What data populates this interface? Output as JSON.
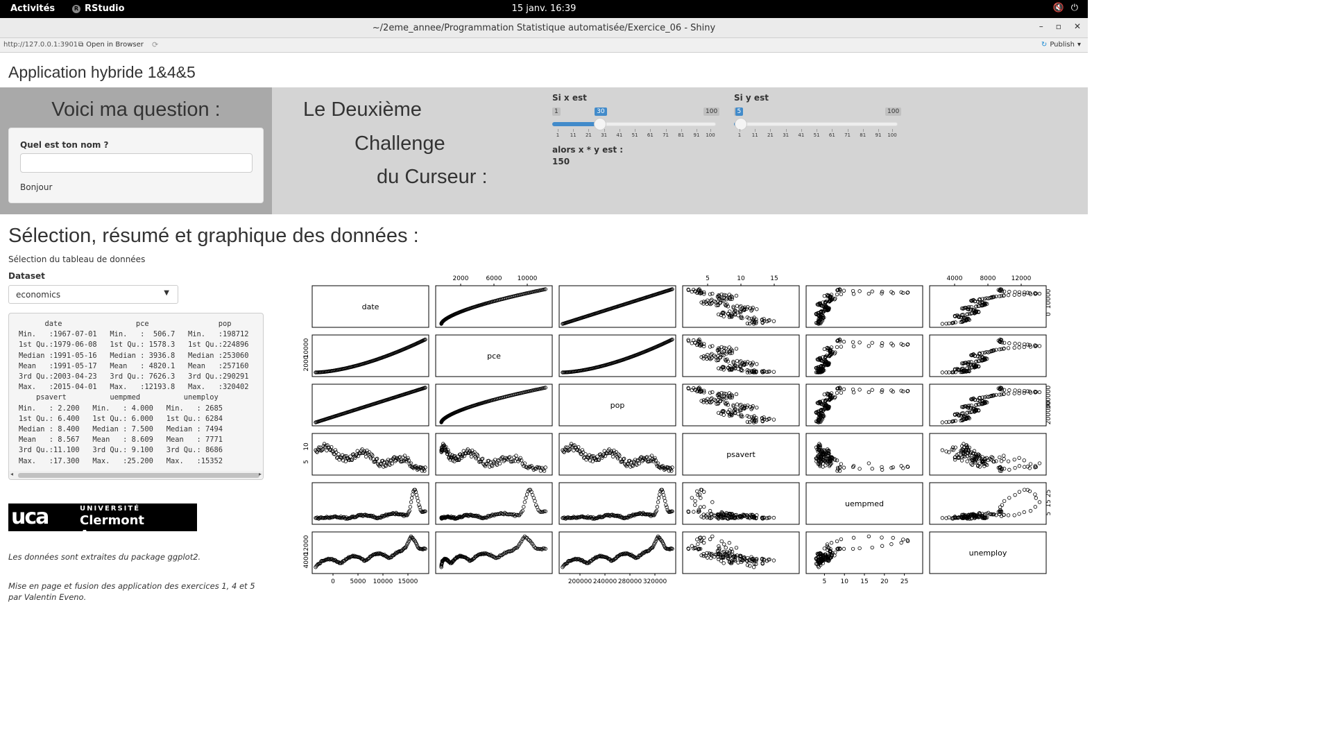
{
  "topbar": {
    "activities": "Activités",
    "app_name": "RStudio",
    "clock": "15 janv.  16:39"
  },
  "window": {
    "title": "~/2eme_annee/Programmation Statistique automatisée/Exercice_06 - Shiny"
  },
  "viewer": {
    "url": "http://127.0.0.1:3901",
    "open_browser": "Open in Browser",
    "publish": "Publish"
  },
  "app": {
    "title": "Application hybride 1&4&5",
    "question_title": "Voici ma question :",
    "name_label": "Quel est ton nom ?",
    "name_value": "",
    "greeting": "Bonjour",
    "challenge_line1": "Le Deuxième",
    "challenge_line2": "Challenge",
    "challenge_line3": "du Curseur :",
    "slider_x": {
      "label": "Si x est",
      "min": 1,
      "max": 100,
      "value": 30,
      "ticks": [
        "1",
        "11",
        "21",
        "31",
        "41",
        "51",
        "61",
        "71",
        "81",
        "91",
        "100"
      ]
    },
    "slider_y": {
      "label": "Si y est",
      "min": 1,
      "max": 100,
      "value": 5,
      "ticks": [
        "1",
        "11",
        "21",
        "31",
        "41",
        "51",
        "61",
        "71",
        "81",
        "91",
        "100"
      ]
    },
    "product_label": "alors x * y est :",
    "product_value": "150",
    "section_title": "Sélection, résumé et graphique des données :",
    "select_caption": "Sélection du tableau de données",
    "dataset_label": "Dataset",
    "dataset_value": "economics",
    "summary_lines": [
      "      date                 pce                pop        ",
      "Min.   :1967-07-01   Min.   :  506.7   Min.   :198712  ",
      "1st Qu.:1979-06-08   1st Qu.: 1578.3   1st Qu.:224896  ",
      "Median :1991-05-16   Median : 3936.8   Median :253060  ",
      "Mean   :1991-05-17   Mean   : 4820.1   Mean   :257160  ",
      "3rd Qu.:2003-04-23   3rd Qu.: 7626.3   3rd Qu.:290291  ",
      "Max.   :2015-04-01   Max.   :12193.8   Max.   :320402  ",
      "    psavert          uempmed          unemploy     ",
      "Min.   : 2.200   Min.   : 4.000   Min.   : 2685  ",
      "1st Qu.: 6.400   1st Qu.: 6.000   1st Qu.: 6284  ",
      "Median : 8.400   Median : 7.500   Median : 7494  ",
      "Mean   : 8.567   Mean   : 8.609   Mean   : 7771  ",
      "3rd Qu.:11.100   3rd Qu.: 9.100   3rd Qu.: 8686  ",
      "Max.   :17.300   Max.   :25.200   Max.   :15352  "
    ],
    "logo_university": "UNIVERSITÉ",
    "logo_name": "Clermont Auvergne",
    "note_source": "Les données sont extraites du package ggplot2.",
    "note_credit": "Mise en page et fusion des application des exercices 1, 4 et 5 par Valentin Eveno."
  },
  "chart_data": {
    "type": "scatter",
    "variables": [
      "date",
      "pce",
      "pop",
      "psavert",
      "uempmed",
      "unemploy"
    ],
    "ranges": {
      "date": [
        0,
        16500
      ],
      "pce": [
        506.7,
        12193.8
      ],
      "pop": [
        198712,
        320402
      ],
      "psavert": [
        2.2,
        17.3
      ],
      "uempmed": [
        4.0,
        25.2
      ],
      "unemploy": [
        2685,
        15352
      ]
    },
    "top_ticks": {
      "pce": [
        "2000",
        "6000",
        "10000"
      ],
      "psavert": [
        "5",
        "10",
        "15"
      ],
      "unemploy": [
        "4000",
        "8000",
        "12000"
      ]
    },
    "bottom_ticks": {
      "date": [
        "0",
        "5000",
        "10000",
        "15000"
      ],
      "pop": [
        "200000",
        "240000",
        "280000",
        "320000"
      ],
      "uempmed": [
        "5",
        "10",
        "15",
        "20",
        "25"
      ]
    },
    "left_ticks": {
      "pce": [
        "2000",
        "10000"
      ],
      "psavert": [
        "5",
        "10"
      ],
      "unemploy": [
        "4000",
        "12000"
      ]
    },
    "right_ticks": {
      "date": [
        "0",
        "10000"
      ],
      "pop": [
        "200000",
        "300000"
      ],
      "uempmed": [
        "5",
        "15",
        "25"
      ]
    },
    "grid": false,
    "marker": "open-circle"
  }
}
